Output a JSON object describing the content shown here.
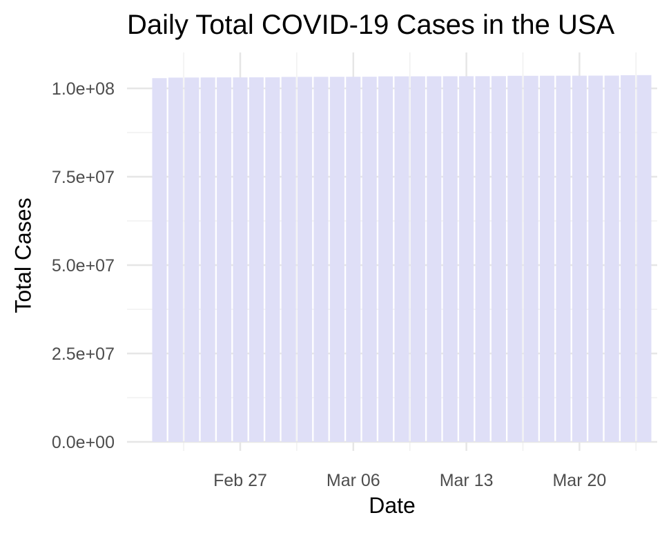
{
  "chart_data": {
    "type": "bar",
    "title": "Daily Total COVID-19 Cases in the USA",
    "xlabel": "Date",
    "ylabel": "Total Cases",
    "x": [
      "2023-02-22",
      "2023-02-23",
      "2023-02-24",
      "2023-02-25",
      "2023-02-26",
      "2023-02-27",
      "2023-02-28",
      "2023-03-01",
      "2023-03-02",
      "2023-03-03",
      "2023-03-04",
      "2023-03-05",
      "2023-03-06",
      "2023-03-07",
      "2023-03-08",
      "2023-03-09",
      "2023-03-10",
      "2023-03-11",
      "2023-03-12",
      "2023-03-13",
      "2023-03-14",
      "2023-03-15",
      "2023-03-16",
      "2023-03-17",
      "2023-03-18",
      "2023-03-19",
      "2023-03-20",
      "2023-03-21",
      "2023-03-22",
      "2023-03-23",
      "2023-03-24"
    ],
    "values": [
      102900000,
      103050000,
      103080000,
      103100000,
      103110000,
      103120000,
      103130000,
      103140000,
      103250000,
      103260000,
      103270000,
      103280000,
      103290000,
      103300000,
      103400000,
      103410000,
      103420000,
      103430000,
      103440000,
      103450000,
      103460000,
      103480000,
      103560000,
      103570000,
      103580000,
      103590000,
      103600000,
      103610000,
      103620000,
      103740000,
      103760000
    ],
    "ylim": [
      0,
      104500000
    ],
    "yticks": [
      0,
      25000000,
      50000000,
      75000000,
      100000000
    ],
    "ytick_labels": [
      "0.0e+00",
      "2.5e+07",
      "5.0e+07",
      "7.5e+07",
      "1.0e+08"
    ],
    "xticks": [
      "2023-02-27",
      "2023-03-06",
      "2023-03-13",
      "2023-03-20"
    ],
    "xtick_labels": [
      "Feb 27",
      "Mar 06",
      "Mar 13",
      "Mar 20"
    ],
    "bar_color": "#dfdff7",
    "grid": true,
    "legend": "none"
  }
}
